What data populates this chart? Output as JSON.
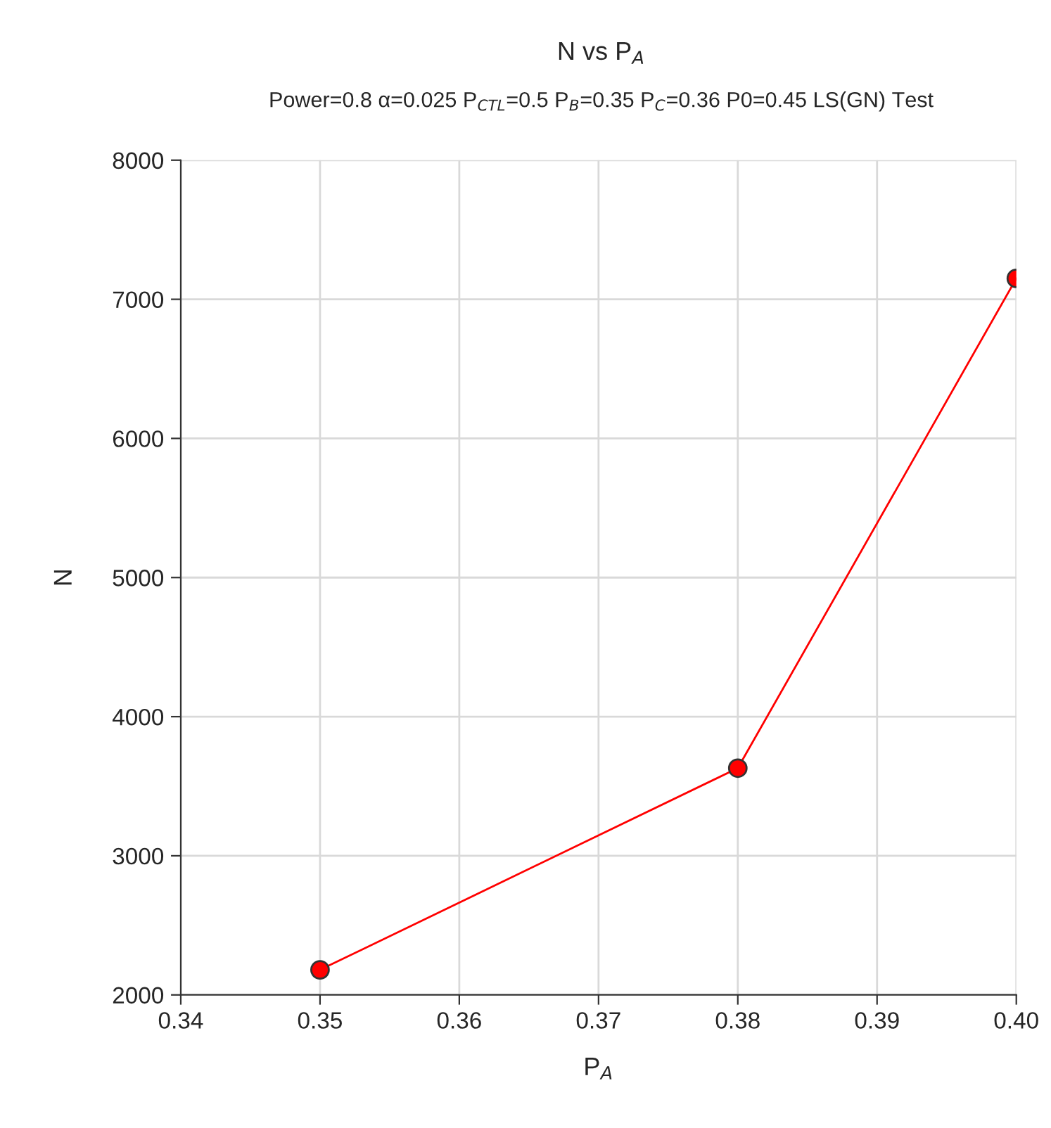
{
  "chart_data": {
    "type": "line",
    "title": "N vs P$_{A}$",
    "subtitle": "Power=0.8 α=0.025 P$_{CTL}$=0.5 P$_{B}$=0.35 P$_{C}$=0.36 P0=0.45 LS(GN) Test",
    "xlabel": "P$_{A}$",
    "ylabel": "N",
    "x": [
      0.35,
      0.38,
      0.4
    ],
    "series": [
      {
        "color": "#ff0000",
        "values": [
          2180,
          3630,
          7150
        ]
      }
    ],
    "xlim": [
      0.34,
      0.4
    ],
    "xticks": [
      0.34,
      0.35,
      0.36,
      0.37,
      0.38,
      0.39,
      {
        "value": 0.4,
        "label": "0.40"
      }
    ],
    "ylim": [
      2000,
      8000
    ],
    "yticks": [
      2000,
      3000,
      4000,
      5000,
      6000,
      7000,
      8000
    ],
    "grid": true,
    "marker": "circle",
    "line_style": "solid",
    "legend": false
  }
}
